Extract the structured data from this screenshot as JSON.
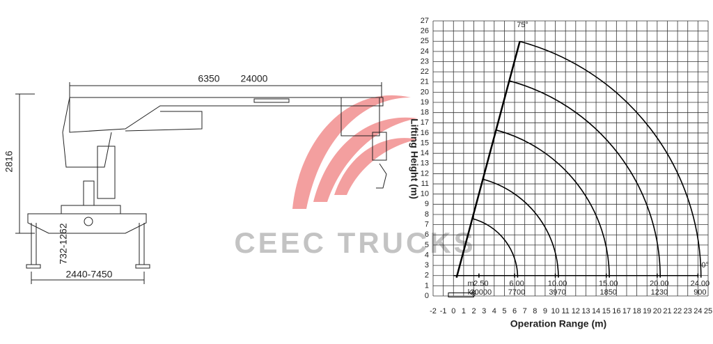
{
  "drawing": {
    "dimensions": {
      "boom_min": "6350",
      "boom_max": "24000",
      "height": "2816",
      "outrigger_height": "732-1262",
      "outrigger_span": "2440-7450"
    }
  },
  "load_chart": {
    "max_angle": "75°",
    "min_angle": "0°",
    "y_label": "Lifting Height (m)",
    "x_label": "Operation Range (m)",
    "xticks": [
      -2,
      -1,
      0,
      1,
      2,
      3,
      4,
      5,
      6,
      7,
      8,
      9,
      10,
      11,
      12,
      13,
      14,
      15,
      16,
      17,
      18,
      19,
      20,
      21,
      22,
      23,
      24,
      25
    ],
    "yticks": [
      0,
      1,
      2,
      3,
      4,
      5,
      6,
      7,
      8,
      9,
      10,
      11,
      12,
      13,
      14,
      15,
      16,
      17,
      18,
      19,
      20,
      21,
      22,
      23,
      24,
      25,
      26,
      27
    ],
    "range_unit": "m.",
    "load_unit": "kg",
    "points": [
      {
        "range": "2.50",
        "load": "20000"
      },
      {
        "range": "6.00",
        "load": "7700"
      },
      {
        "range": "10.00",
        "load": "3970"
      },
      {
        "range": "15.00",
        "load": "1850"
      },
      {
        "range": "20.00",
        "load": "1230"
      },
      {
        "range": "24.00",
        "load": "900"
      }
    ]
  },
  "watermark": "CEEC TRUCKS"
}
